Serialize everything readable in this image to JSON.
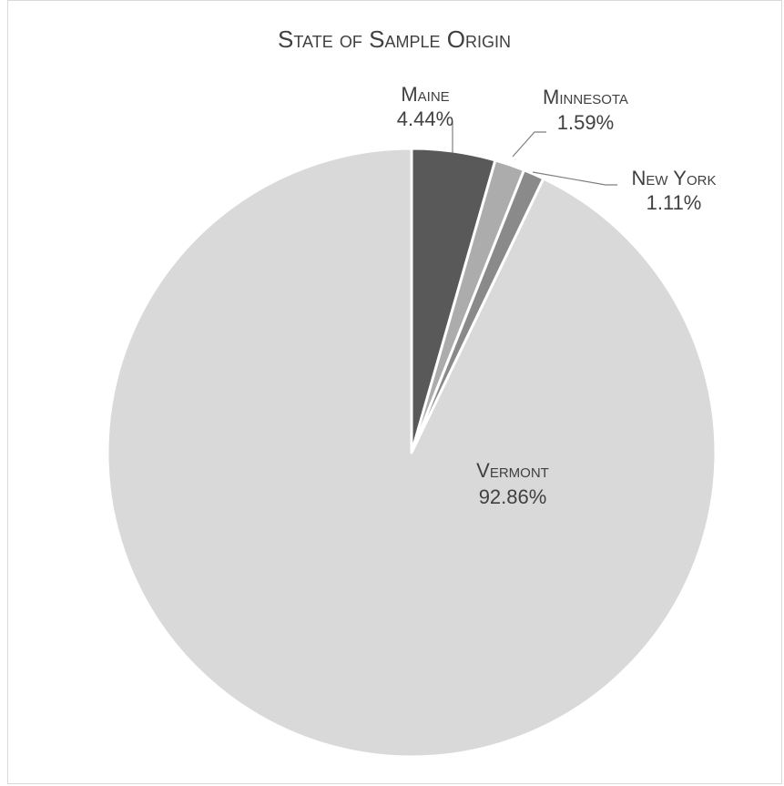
{
  "chart_data": {
    "type": "pie",
    "title": "State of Sample Origin",
    "slices": [
      {
        "label": "Maine",
        "value": 4.44,
        "percent_label": "4.44%",
        "color": "#595959"
      },
      {
        "label": "Minnesota",
        "value": 1.59,
        "percent_label": "1.59%",
        "color": "#acacac"
      },
      {
        "label": "New York",
        "value": 1.11,
        "percent_label": "1.11%",
        "color": "#8a8a8a"
      },
      {
        "label": "Vermont",
        "value": 92.86,
        "percent_label": "92.86%",
        "color": "#d9d9d9"
      }
    ],
    "start_angle_deg": 0,
    "direction": "clockwise",
    "slice_border_color": "#ffffff",
    "text_color": "#404040",
    "legend": "none"
  }
}
